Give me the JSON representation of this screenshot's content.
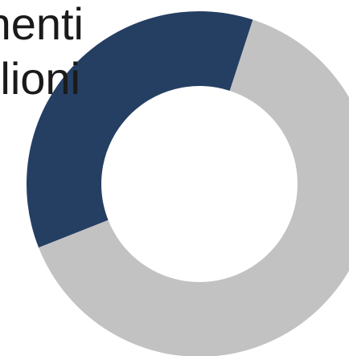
{
  "title_lines": [
    "nenti",
    "lioni"
  ],
  "chart_data": {
    "type": "pie",
    "variant": "donut",
    "title": "nenti lioni",
    "slices": [
      {
        "value": 36,
        "color": "#253f63"
      },
      {
        "value": 64,
        "color": "#c2c2c2"
      }
    ],
    "start_angle_deg": 18,
    "direction": "counterclockwise",
    "legend": "none"
  }
}
